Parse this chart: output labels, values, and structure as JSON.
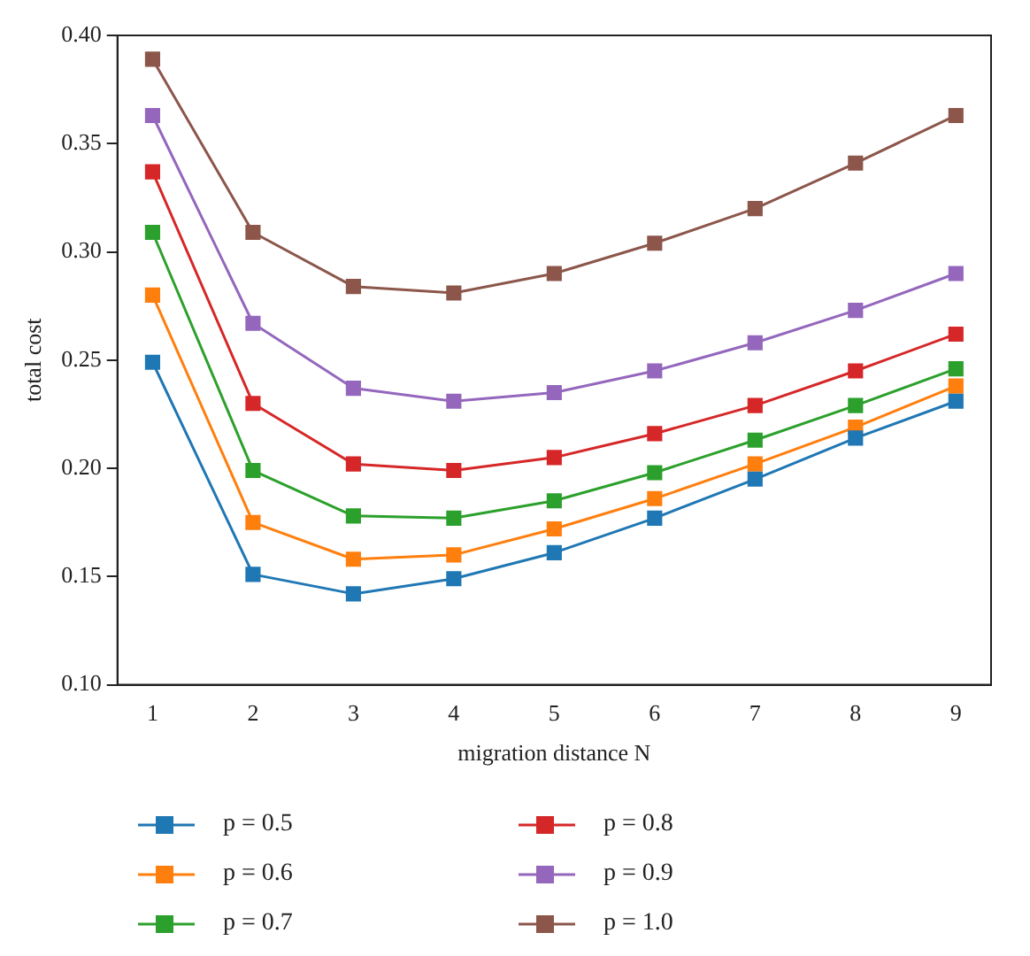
{
  "chart_data": {
    "type": "line",
    "xlabel": "migration distance N",
    "ylabel": "total cost",
    "x": [
      1,
      2,
      3,
      4,
      5,
      6,
      7,
      8,
      9
    ],
    "xlim": [
      0.65,
      9.35
    ],
    "xticks": [
      1,
      2,
      3,
      4,
      5,
      6,
      7,
      8,
      9
    ],
    "ylim": [
      0.1,
      0.4
    ],
    "yticks": [
      {
        "value": 0.1,
        "label": "0.10"
      },
      0.15,
      {
        "value": 0.2,
        "label": "0.20"
      },
      0.25,
      {
        "value": 0.3,
        "label": "0.30"
      },
      0.35,
      {
        "value": 0.4,
        "label": "0.40"
      }
    ],
    "grid": false,
    "legend": "bottom",
    "marker": "square",
    "line_style": "solid",
    "series": [
      {
        "name": "p = 0.5",
        "color": "#1f77b4",
        "values": [
          0.249,
          0.151,
          0.142,
          0.149,
          0.161,
          0.177,
          0.195,
          0.214,
          0.231
        ]
      },
      {
        "name": "p = 0.6",
        "color": "#ff7f0e",
        "values": [
          0.28,
          0.175,
          0.158,
          0.16,
          0.172,
          0.186,
          0.202,
          0.219,
          0.238
        ]
      },
      {
        "name": "p = 0.7",
        "color": "#2ca02c",
        "values": [
          0.309,
          0.199,
          0.178,
          0.177,
          0.185,
          0.198,
          0.213,
          0.229,
          0.246
        ]
      },
      {
        "name": "p = 0.8",
        "color": "#d62728",
        "values": [
          0.337,
          0.23,
          0.202,
          0.199,
          0.205,
          0.216,
          0.229,
          0.245,
          0.262
        ]
      },
      {
        "name": "p = 0.9",
        "color": "#9467bd",
        "values": [
          0.363,
          0.267,
          0.237,
          0.231,
          0.235,
          0.245,
          0.258,
          0.273,
          0.29
        ]
      },
      {
        "name": "p = 1.0",
        "color": "#8c564b",
        "values": [
          0.389,
          0.309,
          0.284,
          0.281,
          0.29,
          0.304,
          0.32,
          0.341,
          0.363
        ]
      }
    ]
  }
}
